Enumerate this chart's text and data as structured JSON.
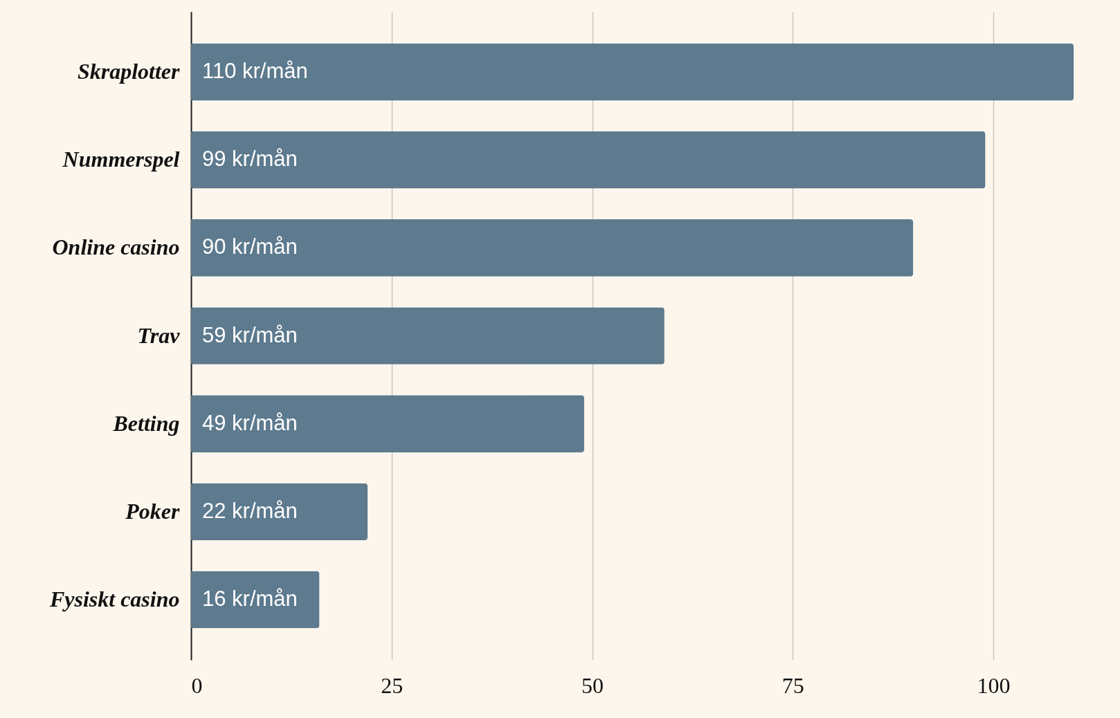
{
  "chart_data": {
    "type": "bar",
    "orientation": "horizontal",
    "categories": [
      "Skraplotter",
      "Nummerspel",
      "Online casino",
      "Trav",
      "Betting",
      "Poker",
      "Fysiskt casino"
    ],
    "values": [
      110,
      99,
      90,
      59,
      49,
      22,
      16
    ],
    "value_labels": [
      "110 kr/mån",
      "99 kr/mån",
      "90 kr/mån",
      "59 kr/mån",
      "49 kr/mån",
      "22 kr/mån",
      "16 kr/mån"
    ],
    "color": "#5d7a8e",
    "xlim": [
      0,
      110
    ],
    "xticks": [
      0,
      25,
      50,
      75,
      100
    ],
    "grid": "x"
  }
}
